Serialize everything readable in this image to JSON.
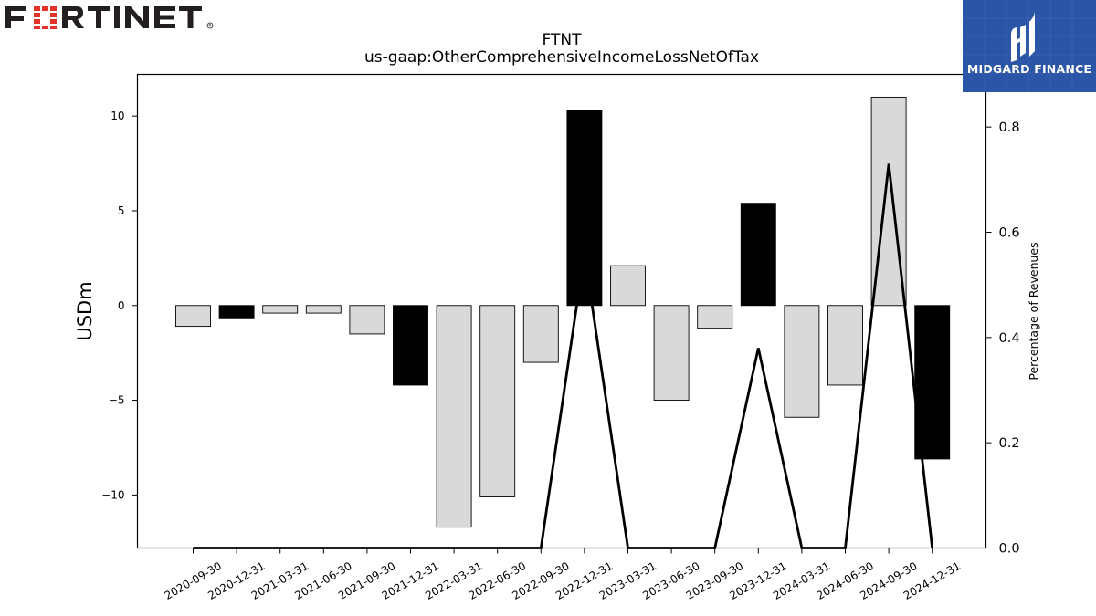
{
  "brand_left": {
    "logo_text": "FORTINET"
  },
  "brand_right": {
    "logo_text": "MIDGARD FINANCE"
  },
  "colors": {
    "highlight_bar": "#000000",
    "normal_bar": "#d9d9d9",
    "line": "#000000",
    "badge_bg": "#2b56a8",
    "logo_red": "#e4322b",
    "logo_dark": "#231f20"
  },
  "chart_data": {
    "type": "bar",
    "title": "FTNT",
    "subtitle": "us-gaap:OtherComprehensiveIncomeLossNetOfTax",
    "ylabel": "USDm",
    "y2label": "Percentage of Revenues",
    "ylim": [
      -12.8,
      12.2
    ],
    "y2lim": [
      0.0,
      0.9
    ],
    "yticks": [
      10,
      5,
      0,
      -5,
      -10
    ],
    "ytick_labels": [
      "10",
      "5",
      "0",
      "−5",
      "−10"
    ],
    "y2ticks": [
      0.8,
      0.6,
      0.4,
      0.2,
      0.0
    ],
    "y2tick_labels": [
      "0.8",
      "0.6",
      "0.4",
      "0.2",
      "0.0"
    ],
    "categories": [
      "2020-09-30",
      "2020-12-31",
      "2021-03-31",
      "2021-06-30",
      "2021-09-30",
      "2021-12-31",
      "2022-03-31",
      "2022-06-30",
      "2022-09-30",
      "2022-12-31",
      "2023-03-31",
      "2023-06-30",
      "2023-09-30",
      "2023-12-31",
      "2024-03-31",
      "2024-06-30",
      "2024-09-30",
      "2024-12-31"
    ],
    "values": [
      -1.1,
      -0.7,
      -0.4,
      -0.4,
      -1.5,
      -4.2,
      -11.7,
      -10.1,
      -3.0,
      10.3,
      2.1,
      -5.0,
      -1.2,
      5.4,
      -5.9,
      -4.2,
      11.0,
      -8.1
    ],
    "highlight": [
      false,
      true,
      false,
      false,
      false,
      true,
      false,
      false,
      false,
      true,
      false,
      false,
      false,
      true,
      false,
      false,
      false,
      true
    ],
    "pct_of_revenues": [
      0.0,
      0.0,
      0.0,
      0.0,
      0.0,
      0.0,
      0.0,
      0.0,
      0.0,
      0.56,
      0.0,
      0.0,
      0.0,
      0.38,
      0.0,
      0.0,
      0.73,
      0.0
    ]
  }
}
